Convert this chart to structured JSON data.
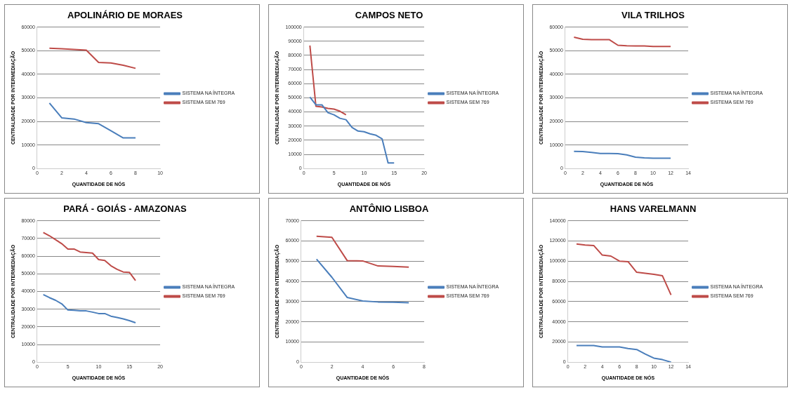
{
  "chart_data": [
    {
      "type": "line",
      "title": "APOLINÁRIO DE MORAES",
      "xlabel": "QUANTIDADE DE NÓS",
      "ylabel": "CENTRALIDADE POR INTERMEDIAÇÃO",
      "xlim": [
        0,
        10
      ],
      "xticks": [
        0,
        2,
        4,
        6,
        8,
        10
      ],
      "ylim": [
        0,
        60000
      ],
      "yticks": [
        0,
        10000,
        20000,
        30000,
        40000,
        50000,
        60000
      ],
      "grid": "y",
      "legend": "right",
      "marker": "none",
      "series": [
        {
          "name": "SISTEMA NA ÍNTEGRA",
          "color": "#4a7ebb",
          "x": [
            1,
            2,
            3,
            4,
            5,
            6,
            7,
            8
          ],
          "values": [
            27800,
            21500,
            21000,
            19500,
            19000,
            16000,
            13000,
            13000
          ]
        },
        {
          "name": "SISTEMA SEM 769",
          "color": "#be4b48",
          "x": [
            1,
            2,
            3,
            4,
            5,
            6,
            7,
            8
          ],
          "values": [
            51000,
            50800,
            50500,
            50200,
            45000,
            44800,
            43800,
            42500
          ]
        }
      ]
    },
    {
      "type": "line",
      "title": "CAMPOS NETO",
      "xlabel": "QUANTIDADE DE NÓS",
      "ylabel": "CENTRALIDADE POR INTERMEDIAÇÃO",
      "xlim": [
        0,
        20
      ],
      "xticks": [
        0,
        5,
        10,
        15,
        20
      ],
      "ylim": [
        0,
        100000
      ],
      "yticks": [
        0,
        10000,
        20000,
        30000,
        40000,
        50000,
        60000,
        70000,
        80000,
        90000,
        100000
      ],
      "grid": "y",
      "legend": "right",
      "marker": "none",
      "series": [
        {
          "name": "SISTEMA NA ÍNTEGRA",
          "color": "#4a7ebb",
          "x": [
            1,
            2,
            3,
            4,
            5,
            6,
            7,
            8,
            9,
            10,
            11,
            12,
            13,
            14,
            15
          ],
          "values": [
            50500,
            45000,
            45000,
            39500,
            38000,
            35500,
            34500,
            29000,
            26500,
            26000,
            24500,
            23500,
            21000,
            4000,
            4000
          ]
        },
        {
          "name": "SISTEMA SEM 769",
          "color": "#be4b48",
          "x": [
            1,
            2,
            3,
            4,
            5,
            6,
            7
          ],
          "values": [
            87000,
            44000,
            43500,
            42500,
            42000,
            40500,
            38000
          ]
        }
      ]
    },
    {
      "type": "line",
      "title": "VILA TRILHOS",
      "xlabel": "QUANTIDADE DE NÓS",
      "ylabel": "CENTRALIDADE POR INTERMEDIAÇÃO",
      "xlim": [
        0,
        14
      ],
      "xticks": [
        0,
        2,
        4,
        6,
        8,
        10,
        12,
        14
      ],
      "ylim": [
        0,
        60000
      ],
      "yticks": [
        0,
        10000,
        20000,
        30000,
        40000,
        50000,
        60000
      ],
      "grid": "y",
      "legend": "right",
      "marker": "none",
      "series": [
        {
          "name": "SISTEMA NA ÍNTEGRA",
          "color": "#4a7ebb",
          "x": [
            1,
            2,
            3,
            4,
            5,
            6,
            7,
            8,
            9,
            10,
            11,
            12
          ],
          "values": [
            7300,
            7200,
            6800,
            6400,
            6400,
            6300,
            5800,
            4800,
            4500,
            4400,
            4400,
            4400
          ]
        },
        {
          "name": "SISTEMA SEM 769",
          "color": "#be4b48",
          "x": [
            1,
            2,
            3,
            4,
            5,
            6,
            7,
            8,
            9,
            10,
            11,
            12
          ],
          "values": [
            55700,
            54800,
            54700,
            54700,
            54700,
            52300,
            52100,
            52000,
            52000,
            51800,
            51800,
            51800
          ]
        }
      ]
    },
    {
      "type": "line",
      "title": "PARÁ - GOIÁS - AMAZONAS",
      "xlabel": "QUANTIDADE DE NÓS",
      "ylabel": "CENTRALIDADE POR INTERMEDIAÇÃO",
      "xlim": [
        0,
        20
      ],
      "xticks": [
        0,
        5,
        10,
        15,
        20
      ],
      "ylim": [
        0,
        80000
      ],
      "yticks": [
        0,
        10000,
        20000,
        30000,
        40000,
        50000,
        60000,
        70000,
        80000
      ],
      "grid": "y",
      "legend": "right",
      "marker": "none",
      "series": [
        {
          "name": "SISTEMA NA ÍNTEGRA",
          "color": "#4a7ebb",
          "x": [
            1,
            2,
            3,
            4,
            5,
            6,
            7,
            8,
            9,
            10,
            11,
            12,
            13,
            14,
            15,
            16
          ],
          "values": [
            38200,
            36500,
            35000,
            33000,
            29500,
            29300,
            29000,
            29000,
            28300,
            27500,
            27500,
            26000,
            25300,
            24500,
            23500,
            22300
          ]
        },
        {
          "name": "SISTEMA SEM 769",
          "color": "#be4b48",
          "x": [
            1,
            2,
            3,
            4,
            5,
            6,
            7,
            8,
            9,
            10,
            11,
            12,
            13,
            14,
            15,
            16
          ],
          "values": [
            73300,
            71500,
            69300,
            67000,
            64000,
            64000,
            62300,
            62000,
            61700,
            58000,
            57500,
            54500,
            52500,
            51000,
            50800,
            46200
          ]
        }
      ]
    },
    {
      "type": "line",
      "title": "ANTÔNIO LISBOA",
      "xlabel": "QUANTIDADE DE NÓS",
      "ylabel": "CENTRALIDADE POR INTERMEDIAÇÃO",
      "xlim": [
        0,
        8
      ],
      "xticks": [
        0,
        2,
        4,
        6,
        8
      ],
      "ylim": [
        0,
        70000
      ],
      "yticks": [
        0,
        10000,
        20000,
        30000,
        40000,
        50000,
        60000,
        70000
      ],
      "grid": "y",
      "legend": "right",
      "marker": "none",
      "series": [
        {
          "name": "SISTEMA NA ÍNTEGRA",
          "color": "#4a7ebb",
          "x": [
            1,
            2,
            3,
            4,
            5,
            6,
            7
          ],
          "values": [
            51000,
            42000,
            32000,
            30300,
            29800,
            29700,
            29400
          ]
        },
        {
          "name": "SISTEMA SEM 769",
          "color": "#be4b48",
          "x": [
            1,
            2,
            3,
            4,
            5,
            6,
            7
          ],
          "values": [
            62300,
            61800,
            50200,
            50100,
            47600,
            47400,
            47000
          ]
        }
      ]
    },
    {
      "type": "line",
      "title": "HANS VARELMANN",
      "xlabel": "QUANTIDADE DE NÓS",
      "ylabel": "CENTRALIDADE POR INTERMEDIAÇÃO",
      "xlim": [
        0,
        14
      ],
      "xticks": [
        0,
        2,
        4,
        6,
        8,
        10,
        12,
        14
      ],
      "ylim": [
        0,
        140000
      ],
      "yticks": [
        0,
        20000,
        40000,
        60000,
        80000,
        100000,
        120000,
        140000
      ],
      "grid": "y",
      "legend": "right",
      "marker": "none",
      "series": [
        {
          "name": "SISTEMA NA ÍNTEGRA",
          "color": "#4a7ebb",
          "x": [
            1,
            2,
            3,
            4,
            5,
            6,
            7,
            8,
            9,
            10,
            11,
            12
          ],
          "values": [
            16500,
            16500,
            16500,
            15000,
            15000,
            15000,
            13500,
            12500,
            8000,
            4000,
            2500,
            0
          ]
        },
        {
          "name": "SISTEMA SEM 769",
          "color": "#be4b48",
          "x": [
            1,
            2,
            3,
            4,
            5,
            6,
            7,
            8,
            9,
            10,
            11,
            12
          ],
          "values": [
            117000,
            116000,
            115500,
            106000,
            105000,
            100000,
            99500,
            89000,
            88000,
            87000,
            85500,
            66500
          ]
        }
      ]
    }
  ]
}
